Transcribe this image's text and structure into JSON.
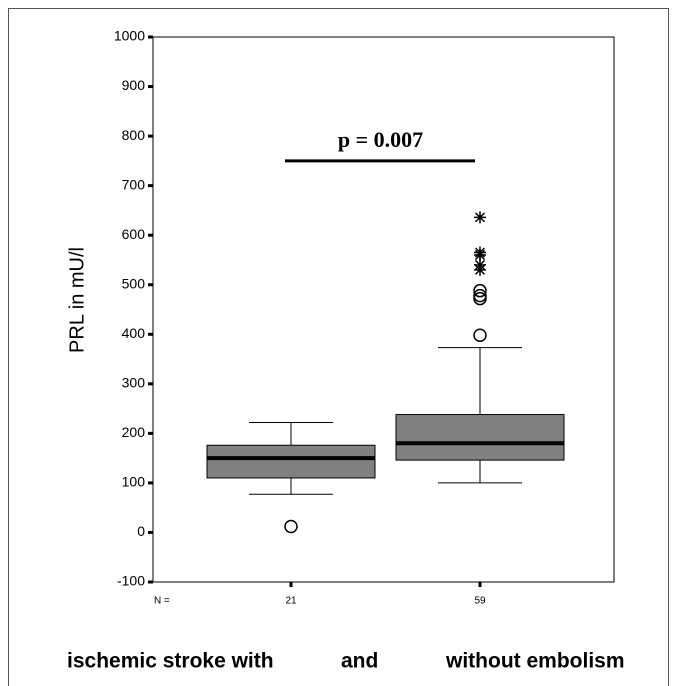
{
  "chart_data": {
    "type": "box",
    "y_label": "PRL in mU/l",
    "x_label_parts": [
      "ischemic stroke with",
      "and",
      "without embolism"
    ],
    "n_label": "N =",
    "n": [
      21,
      59
    ],
    "boxes": [
      {
        "whislo": 77,
        "q1": 110,
        "med": 150,
        "q3": 176,
        "whishi": 222,
        "outliers": [
          12
        ],
        "extremes": []
      },
      {
        "whislo": 100,
        "q1": 146,
        "med": 180,
        "q3": 238,
        "whishi": 373,
        "outliers": [
          398,
          472,
          478,
          488
        ],
        "extremes": [
          530,
          540,
          560,
          565,
          636
        ]
      }
    ],
    "color": "#808080",
    "annotation": {
      "text": "p = 0.007",
      "y": 750
    },
    "ylim": [
      -100,
      1000
    ],
    "yticks": [
      -100,
      0,
      100,
      200,
      300,
      400,
      500,
      600,
      700,
      800,
      900,
      1000
    ]
  }
}
